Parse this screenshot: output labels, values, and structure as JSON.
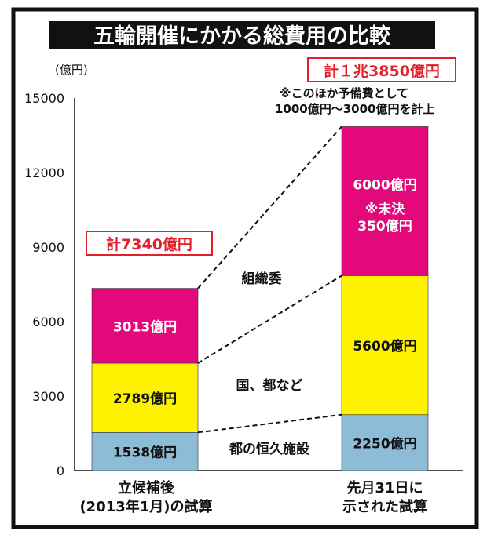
{
  "chart_data": {
    "type": "bar",
    "stacked": true,
    "title": "五輪開催にかかる総費用の比較",
    "ylabel": "(億円)",
    "ylim": [
      0,
      15000
    ],
    "yticks": [
      0,
      3000,
      6000,
      9000,
      12000,
      15000
    ],
    "categories": [
      [
        "立候補後",
        "(2013年1月)の試算"
      ],
      [
        "先月31日に",
        "示された試算"
      ]
    ],
    "series": [
      {
        "name": "都の恒久施設",
        "color": "#8dbcd6",
        "values": [
          1538,
          2250
        ],
        "labels": [
          "1538億円",
          "2250億円"
        ]
      },
      {
        "name": "国、都など",
        "color": "#fff200",
        "values": [
          2789,
          5600
        ],
        "labels": [
          "2789億円",
          "5600億円"
        ]
      },
      {
        "name": "組織委",
        "color": "#e4097a",
        "values": [
          3013,
          6000
        ],
        "labels": [
          "3013億円",
          "6000億円"
        ]
      }
    ],
    "totals": [
      "計7340億円",
      "計１兆3850億円"
    ],
    "total_color": "#e0202a",
    "annotations": {
      "undecided": [
        "※未決",
        "350億円"
      ],
      "reserve": [
        "※このほか予備費として",
        "1000億円〜3000億円を計上"
      ]
    },
    "grid": false
  }
}
